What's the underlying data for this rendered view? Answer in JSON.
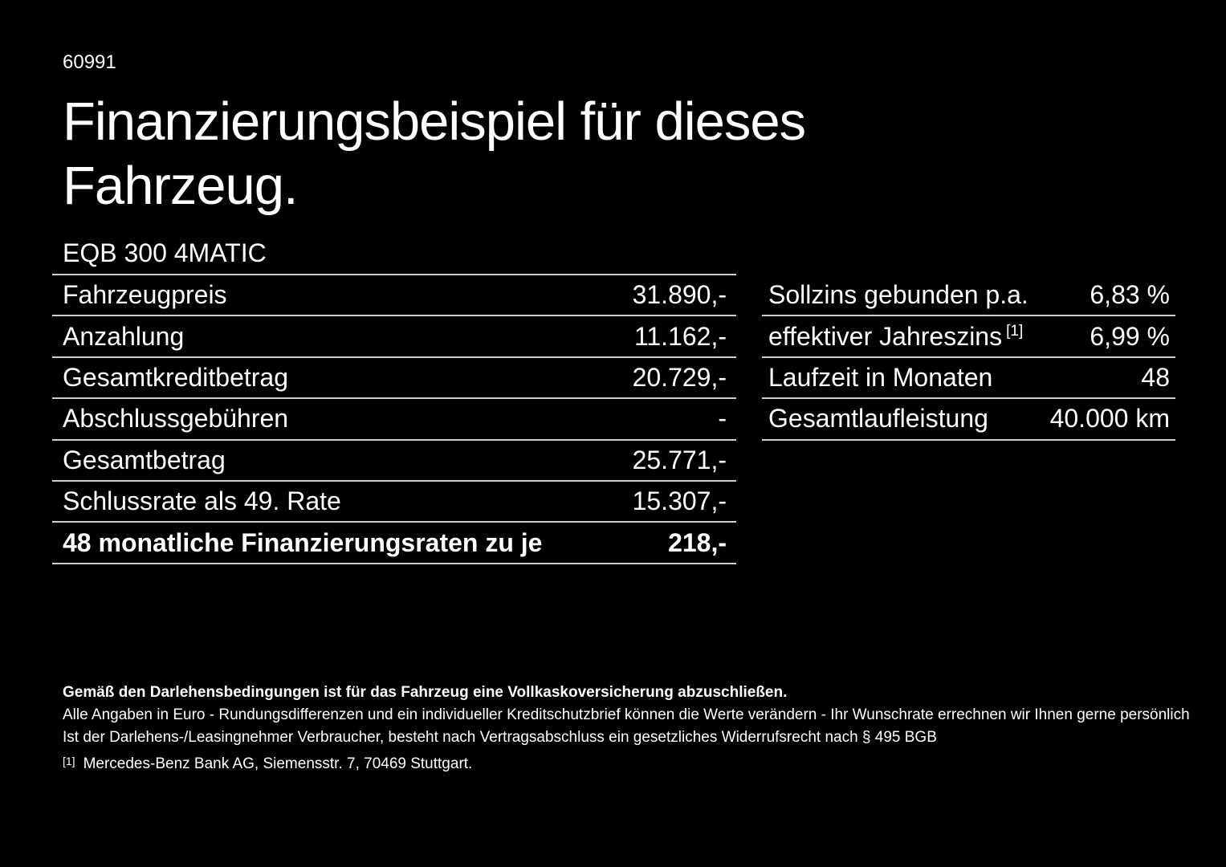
{
  "page": {
    "background_color": "#000000",
    "text_color": "#ffffff",
    "divider_color": "#cfcfcf"
  },
  "header": {
    "id_number": "60991",
    "title_line1": "Finanzierungsbeispiel für dieses",
    "title_line2": "Fahrzeug."
  },
  "vehicle": {
    "model": "EQB 300 4MATIC"
  },
  "finance_table": {
    "rows": [
      {
        "label": "Fahrzeugpreis",
        "value": "31.890,-"
      },
      {
        "label": "Anzahlung",
        "value": "11.162,-"
      },
      {
        "label": "Gesamtkreditbetrag",
        "value": "20.729,-"
      },
      {
        "label": "Abschlussgebühren",
        "value": "-"
      },
      {
        "label": "Gesamtbetrag",
        "value": "25.771,-"
      },
      {
        "label": "Schlussrate als 49. Rate",
        "value": "15.307,-"
      },
      {
        "label": "48 monatliche Finanzierungsraten zu je",
        "value": "218,-"
      }
    ]
  },
  "conditions_table": {
    "rows": [
      {
        "label": "Sollzins gebunden p.a.",
        "value": "6,83 %"
      },
      {
        "label": "effektiver Jahreszins",
        "sup": "[1]",
        "value": "6,99 %"
      },
      {
        "label": "Laufzeit in Monaten",
        "value": "48"
      },
      {
        "label": "Gesamtlaufleistung",
        "value": "40.000 km"
      }
    ]
  },
  "footnotes": {
    "insurance_note": "Gemäß den Darlehensbedingungen ist für das Fahrzeug eine Vollkaskoversicherung abzuschließen.",
    "euro_note": "Alle Angaben in Euro - Rundungsdifferenzen und ein individueller Kreditschutzbrief können die Werte verändern - Ihr Wunschrate errechnen wir Ihnen gerne persönlich",
    "withdrawal_note": "Ist der Darlehens-/Leasingnehmer Verbraucher, besteht nach Vertragsabschluss ein gesetzliches Widerrufsrecht nach § 495 BGB",
    "bank_ref_marker": "[1]",
    "bank_ref_text": "Mercedes-Benz Bank AG, Siemensstr. 7, 70469 Stuttgart."
  }
}
